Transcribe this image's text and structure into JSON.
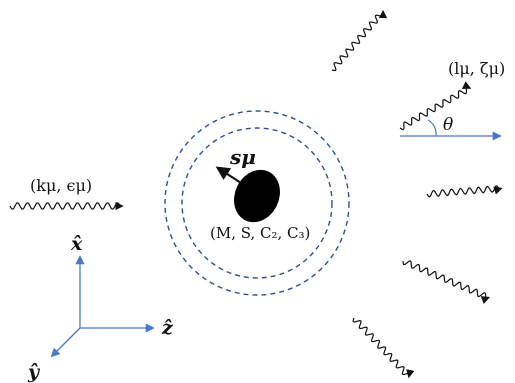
{
  "labels": {
    "incoming_wave": "(kμ, ϵμ)",
    "outgoing_wave": "(lμ, ζμ)",
    "angle": "θ",
    "spin": "sμ",
    "body_params": "(M, S, C₂, C₃)",
    "axis_x": "x̂",
    "axis_y": "ŷ",
    "axis_z": "ẑ"
  },
  "colors": {
    "axis_blue": "#4a78c8",
    "ring_blue": "#2f4f8f",
    "ink": "#111111"
  },
  "icons": {
    "body": "black-ellipse",
    "wave": "wavy-arrow"
  }
}
